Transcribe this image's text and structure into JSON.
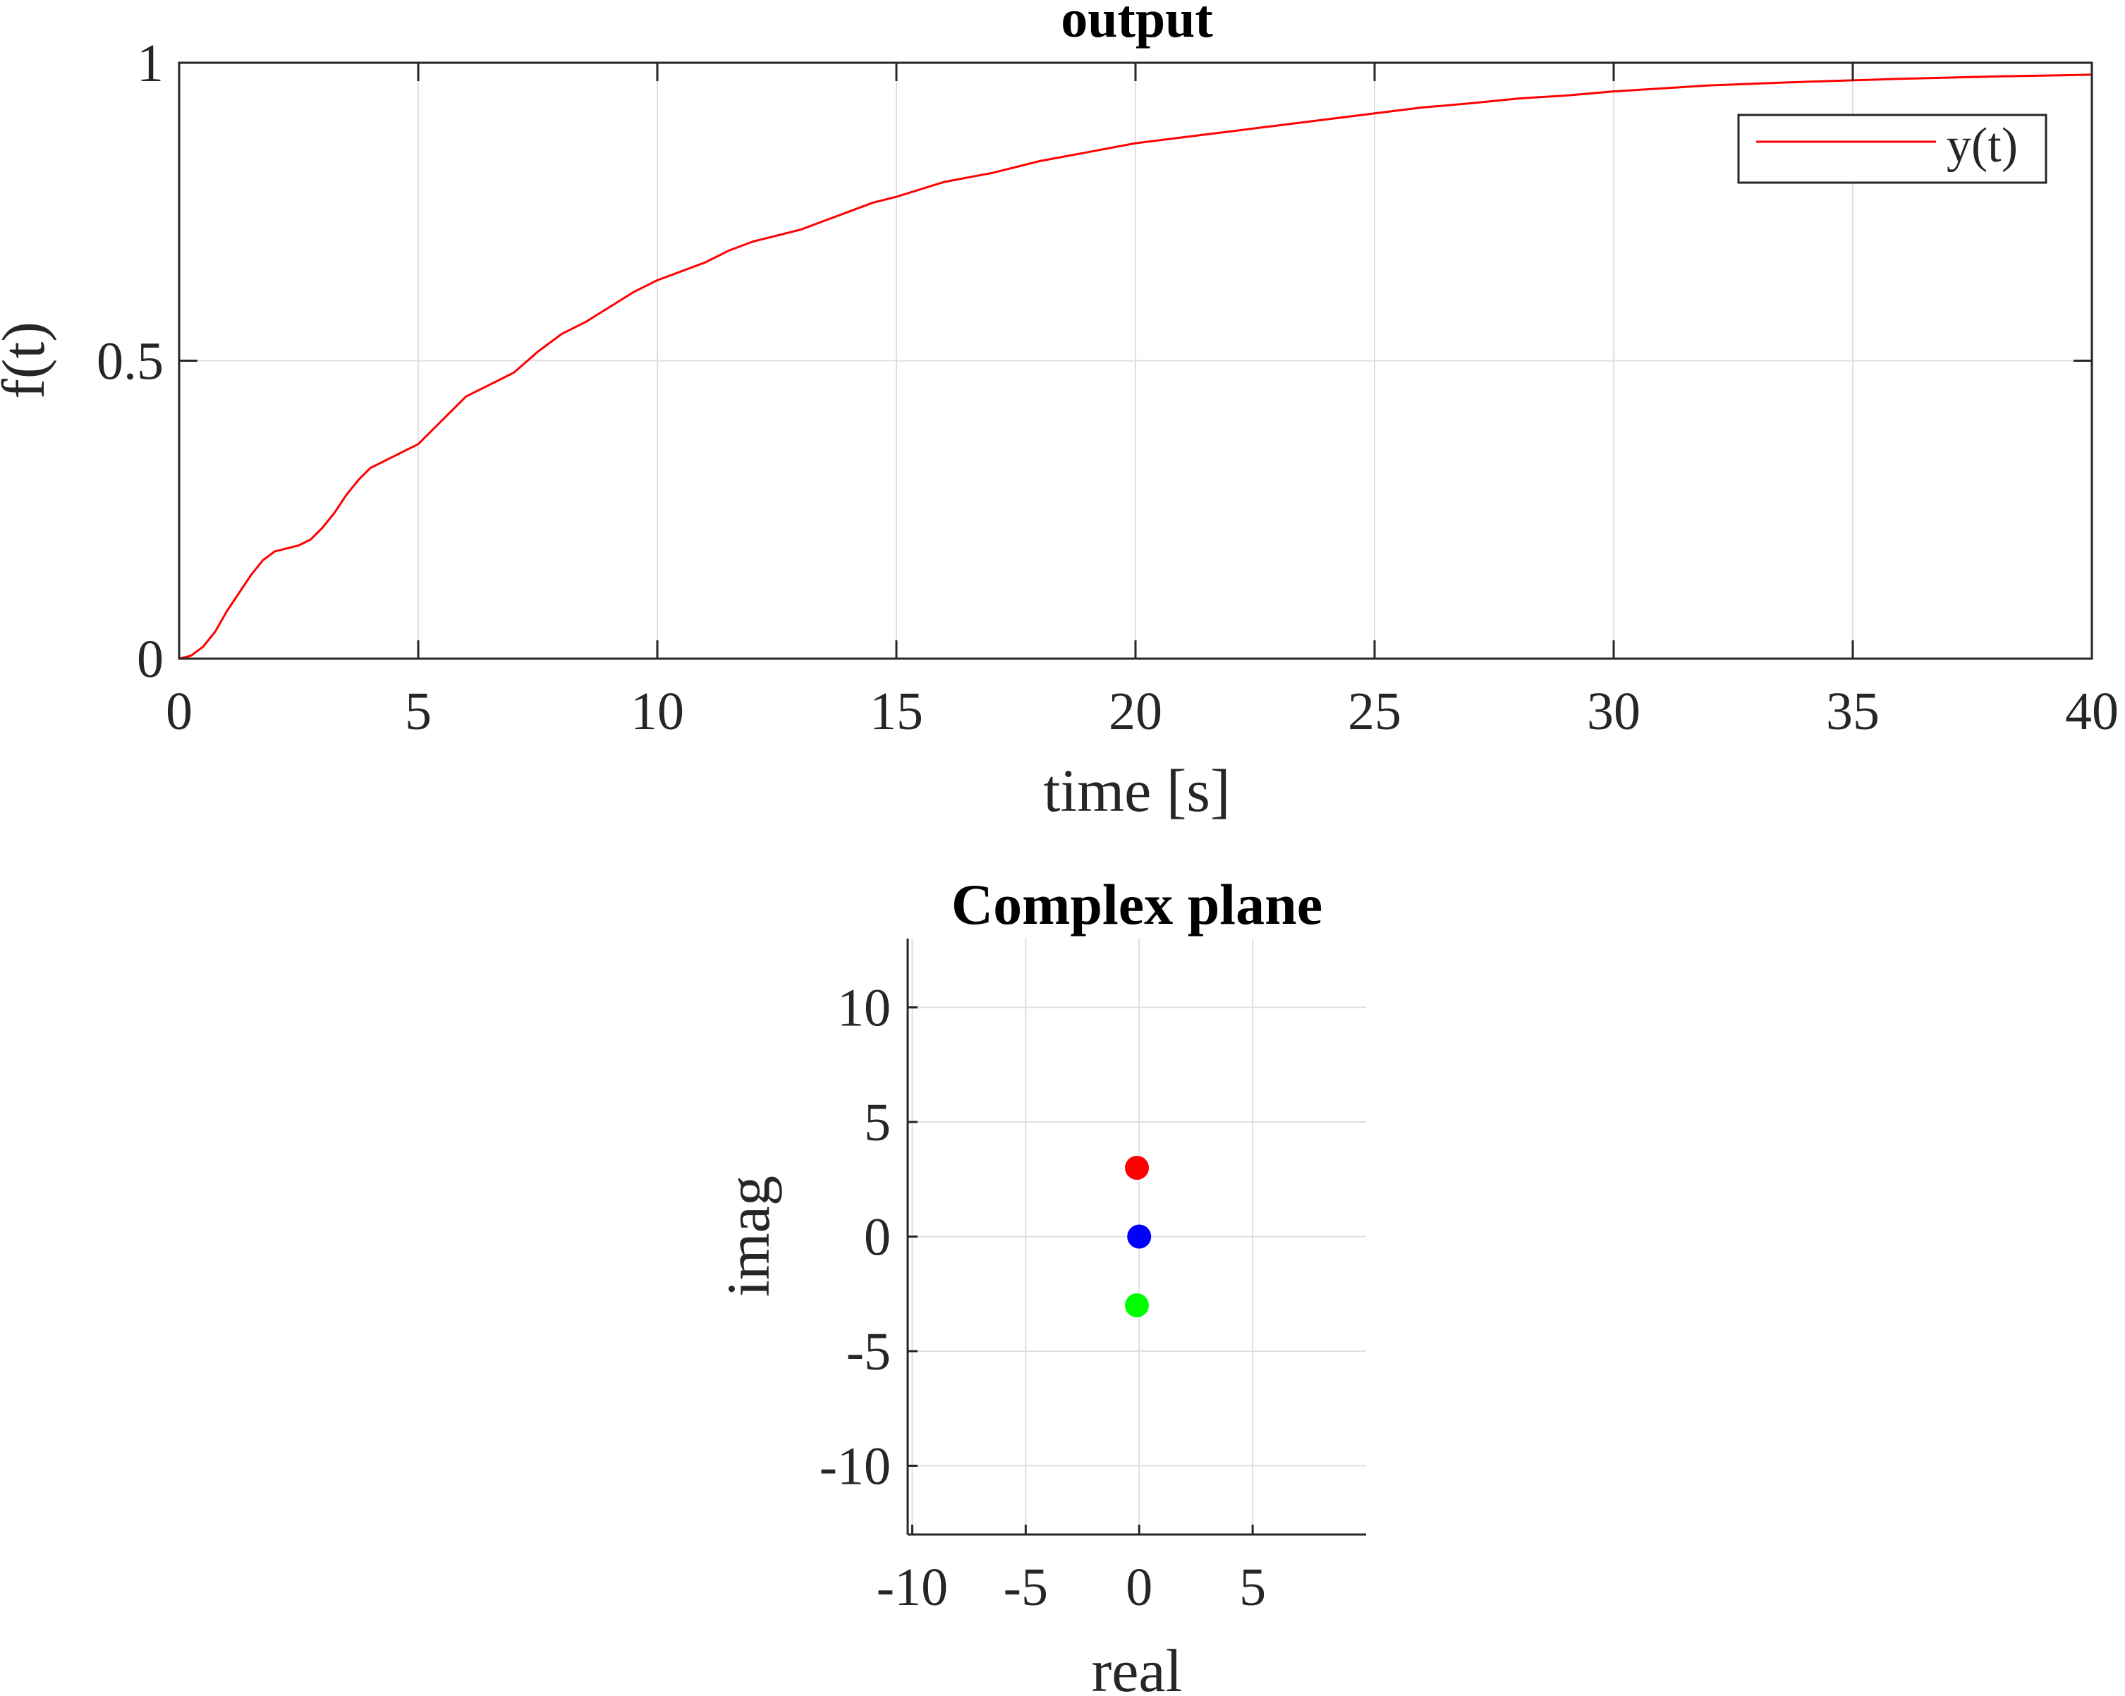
{
  "chart_data": [
    {
      "type": "line",
      "title": "output",
      "xlabel": "time [s]",
      "ylabel": "f(t)",
      "xlim": [
        0,
        40
      ],
      "ylim": [
        0,
        1
      ],
      "xticks": [
        0,
        5,
        10,
        15,
        20,
        25,
        30,
        35,
        40
      ],
      "xtick_labels": [
        "0",
        "5",
        "10",
        "15",
        "20",
        "25",
        "30",
        "35",
        "40"
      ],
      "yticks": [
        0,
        0.5,
        1
      ],
      "ytick_labels": [
        "0",
        "0.5",
        "1"
      ],
      "grid": true,
      "legend": {
        "position": "top-right",
        "entries": [
          "y(t)"
        ]
      },
      "series": [
        {
          "name": "y(t)",
          "color": "#ff0000",
          "x": [
            0,
            0.25,
            0.5,
            0.75,
            1.0,
            1.25,
            1.5,
            1.75,
            2.0,
            2.25,
            2.5,
            2.75,
            3.0,
            3.25,
            3.5,
            3.75,
            4.0,
            4.5,
            5.0,
            5.5,
            6.0,
            6.5,
            7.0,
            7.5,
            8.0,
            8.5,
            9.0,
            9.5,
            10,
            10.5,
            11,
            11.5,
            12,
            12.5,
            13,
            13.5,
            14,
            14.5,
            15,
            16,
            17,
            18,
            19,
            20,
            21,
            22,
            23,
            24,
            25,
            26,
            27,
            28,
            29,
            30,
            32,
            34,
            36,
            38,
            40
          ],
          "y": [
            0,
            0.005,
            0.02,
            0.045,
            0.08,
            0.11,
            0.14,
            0.165,
            0.18,
            0.185,
            0.19,
            0.2,
            0.22,
            0.245,
            0.275,
            0.3,
            0.32,
            0.34,
            0.36,
            0.4,
            0.44,
            0.46,
            0.48,
            0.515,
            0.545,
            0.565,
            0.59,
            0.615,
            0.635,
            0.65,
            0.665,
            0.685,
            0.7,
            0.71,
            0.72,
            0.735,
            0.75,
            0.765,
            0.775,
            0.8,
            0.815,
            0.835,
            0.85,
            0.865,
            0.875,
            0.885,
            0.895,
            0.905,
            0.915,
            0.925,
            0.932,
            0.94,
            0.945,
            0.952,
            0.962,
            0.968,
            0.973,
            0.977,
            0.98
          ]
        }
      ]
    },
    {
      "type": "scatter",
      "title": "Complex plane",
      "xlabel": "real",
      "ylabel": "imag",
      "xlim": [
        -10.2,
        10
      ],
      "ylim": [
        -13,
        13
      ],
      "xticks": [
        -10,
        -5,
        0,
        5
      ],
      "xtick_labels": [
        "-10",
        "-5",
        "0",
        "5"
      ],
      "yticks": [
        10,
        5,
        0,
        -5,
        -10
      ],
      "ytick_labels": [
        "10",
        "5",
        "0",
        "-5",
        "-10"
      ],
      "grid": true,
      "points": [
        {
          "x": -0.1,
          "y": 3,
          "color": "#ff0000"
        },
        {
          "x": 0,
          "y": 0,
          "color": "#0000ff"
        },
        {
          "x": -0.1,
          "y": -3,
          "color": "#00ff00"
        }
      ]
    }
  ]
}
